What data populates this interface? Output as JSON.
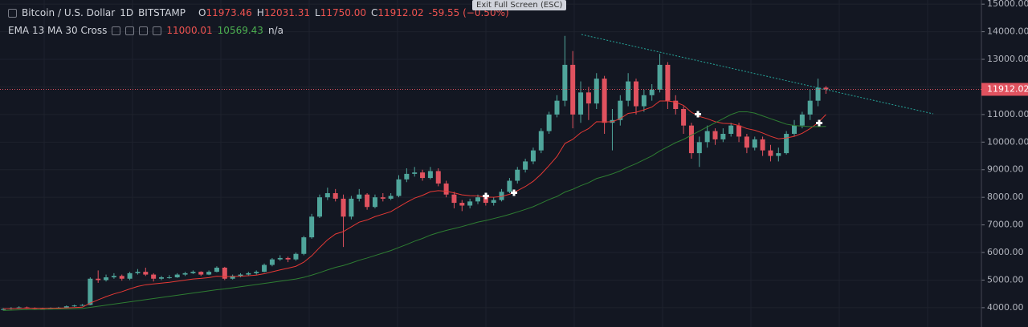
{
  "header": {
    "symbol": "Bitcoin / U.S. Dollar",
    "interval": "1D",
    "exchange": "BITSTAMP",
    "o_label": "O",
    "open": "11973.46",
    "h_label": "H",
    "high": "12031.31",
    "l_label": "L",
    "low": "11750.00",
    "c_label": "C",
    "close": "11912.02",
    "change": "-59.55 (−0.50%)"
  },
  "indicator": {
    "name": "EMA 13 MA 30 Cross",
    "ema": "11000.01",
    "ma": "10569.43",
    "cross": "n/a"
  },
  "tooltip": "Exit Full Screen (ESC)",
  "chart_data": {
    "type": "candlestick",
    "up_color": "#4fa59b",
    "down_color": "#e0525f",
    "grid": true,
    "ylim": [
      3300,
      15150
    ],
    "yticks": [
      {
        "value": 4000,
        "label": "4000.00"
      },
      {
        "value": 5000,
        "label": "5000.00"
      },
      {
        "value": 6000,
        "label": "6000.00"
      },
      {
        "value": 7000,
        "label": "7000.00"
      },
      {
        "value": 8000,
        "label": "8000.00"
      },
      {
        "value": 9000,
        "label": "9000.00"
      },
      {
        "value": 10000,
        "label": "10000.00"
      },
      {
        "value": 11000,
        "label": "11000.00"
      },
      {
        "value": 12000,
        "label": "12000.00"
      },
      {
        "value": 13000,
        "label": "13000.00"
      },
      {
        "value": 14000,
        "label": "14000.00"
      },
      {
        "value": 15000,
        "label": "15000.00"
      }
    ],
    "last_price": {
      "value": 11912.02,
      "label": "11912.02"
    },
    "candles": [
      [
        3930,
        3990,
        3900,
        3950
      ],
      [
        3950,
        4020,
        3930,
        3980
      ],
      [
        3980,
        4050,
        3960,
        4010
      ],
      [
        4010,
        4040,
        3960,
        3990
      ],
      [
        3990,
        4010,
        3940,
        3970
      ],
      [
        3970,
        4000,
        3930,
        3960
      ],
      [
        3960,
        4010,
        3940,
        3990
      ],
      [
        3990,
        4030,
        3970,
        4000
      ],
      [
        4000,
        4080,
        3980,
        4050
      ],
      [
        4050,
        4110,
        4030,
        4080
      ],
      [
        4080,
        4130,
        4060,
        4100
      ],
      [
        4100,
        5100,
        4090,
        5050
      ],
      [
        5050,
        5350,
        4900,
        5000
      ],
      [
        5000,
        5200,
        4950,
        5100
      ],
      [
        5100,
        5250,
        5050,
        5150
      ],
      [
        5150,
        5200,
        4980,
        5050
      ],
      [
        5050,
        5300,
        5000,
        5250
      ],
      [
        5250,
        5400,
        5200,
        5300
      ],
      [
        5300,
        5450,
        5150,
        5200
      ],
      [
        5200,
        5250,
        4950,
        5050
      ],
      [
        5050,
        5150,
        5000,
        5100
      ],
      [
        5100,
        5180,
        5050,
        5100
      ],
      [
        5100,
        5250,
        5080,
        5200
      ],
      [
        5200,
        5300,
        5150,
        5250
      ],
      [
        5250,
        5350,
        5220,
        5300
      ],
      [
        5300,
        5320,
        5150,
        5200
      ],
      [
        5200,
        5350,
        5180,
        5300
      ],
      [
        5300,
        5500,
        5280,
        5450
      ],
      [
        5450,
        5480,
        5000,
        5050
      ],
      [
        5050,
        5200,
        5020,
        5150
      ],
      [
        5150,
        5250,
        5100,
        5200
      ],
      [
        5200,
        5300,
        5150,
        5250
      ],
      [
        5250,
        5350,
        5200,
        5300
      ],
      [
        5300,
        5600,
        5280,
        5550
      ],
      [
        5550,
        5800,
        5500,
        5750
      ],
      [
        5750,
        5900,
        5700,
        5800
      ],
      [
        5800,
        5850,
        5650,
        5750
      ],
      [
        5750,
        6000,
        5700,
        5950
      ],
      [
        5950,
        6600,
        5900,
        6550
      ],
      [
        6550,
        7400,
        6500,
        7300
      ],
      [
        7300,
        8100,
        7250,
        8000
      ],
      [
        8000,
        8350,
        7900,
        8150
      ],
      [
        8150,
        8300,
        7850,
        7950
      ],
      [
        7950,
        8100,
        6200,
        7300
      ],
      [
        7300,
        8050,
        7200,
        7950
      ],
      [
        7950,
        8300,
        7850,
        8100
      ],
      [
        8100,
        8150,
        7550,
        7650
      ],
      [
        7650,
        8100,
        7600,
        8000
      ],
      [
        8000,
        8150,
        7850,
        7950
      ],
      [
        7950,
        8150,
        7900,
        8050
      ],
      [
        8050,
        8800,
        8000,
        8650
      ],
      [
        8650,
        9050,
        8550,
        8850
      ],
      [
        8850,
        9100,
        8750,
        8900
      ],
      [
        8900,
        9000,
        8600,
        8700
      ],
      [
        8700,
        9100,
        8650,
        8950
      ],
      [
        8950,
        9050,
        8400,
        8500
      ],
      [
        8500,
        8600,
        8000,
        8100
      ],
      [
        8100,
        8200,
        7600,
        7800
      ],
      [
        7800,
        7900,
        7500,
        7700
      ],
      [
        7700,
        7950,
        7600,
        7850
      ],
      [
        7850,
        8100,
        7750,
        8000
      ],
      [
        8000,
        8050,
        7700,
        7800
      ],
      [
        7800,
        8000,
        7700,
        7900
      ],
      [
        7900,
        8300,
        7850,
        8200
      ],
      [
        8200,
        8700,
        8150,
        8600
      ],
      [
        8600,
        9100,
        8500,
        9000
      ],
      [
        9000,
        9400,
        8900,
        9300
      ],
      [
        9300,
        9800,
        9200,
        9700
      ],
      [
        9700,
        10500,
        9600,
        10400
      ],
      [
        10400,
        11100,
        10300,
        11000
      ],
      [
        11000,
        11700,
        10900,
        11500
      ],
      [
        11500,
        13850,
        11300,
        12800
      ],
      [
        12800,
        13300,
        10500,
        11000
      ],
      [
        11000,
        12200,
        10700,
        11800
      ],
      [
        11800,
        12000,
        10800,
        11400
      ],
      [
        11400,
        12500,
        11200,
        12300
      ],
      [
        12300,
        12400,
        10300,
        10700
      ],
      [
        10700,
        11200,
        9700,
        10800
      ],
      [
        10800,
        11700,
        10600,
        11500
      ],
      [
        11500,
        12500,
        11300,
        12200
      ],
      [
        12200,
        12300,
        11000,
        11300
      ],
      [
        11300,
        11900,
        11100,
        11700
      ],
      [
        11700,
        12100,
        11500,
        11900
      ],
      [
        11900,
        13200,
        11800,
        12800
      ],
      [
        12800,
        12900,
        11200,
        11500
      ],
      [
        11500,
        11700,
        11000,
        11200
      ],
      [
        11200,
        11300,
        10300,
        10600
      ],
      [
        10600,
        10700,
        9400,
        9600
      ],
      [
        9600,
        10200,
        9100,
        10000
      ],
      [
        10000,
        10600,
        9800,
        10400
      ],
      [
        10400,
        10500,
        9900,
        10100
      ],
      [
        10100,
        10500,
        10000,
        10300
      ],
      [
        10300,
        10700,
        10200,
        10600
      ],
      [
        10600,
        10700,
        10000,
        10200
      ],
      [
        10200,
        10300,
        9600,
        9800
      ],
      [
        9800,
        10200,
        9700,
        10100
      ],
      [
        10100,
        10200,
        9500,
        9700
      ],
      [
        9700,
        9900,
        9300,
        9500
      ],
      [
        9500,
        9800,
        9300,
        9600
      ],
      [
        9600,
        10400,
        9550,
        10300
      ],
      [
        10300,
        10800,
        10200,
        10600
      ],
      [
        10600,
        11100,
        10500,
        11000
      ],
      [
        11000,
        11900,
        10800,
        11500
      ],
      [
        11500,
        12300,
        11300,
        11971.57
      ],
      [
        11973.46,
        12031.31,
        11750,
        11912.02
      ]
    ],
    "series": [
      {
        "name": "EMA 13",
        "color": "#e53935",
        "values": [
          3960,
          3965,
          3975,
          3978,
          3978,
          3976,
          3978,
          3982,
          3992,
          4005,
          4018,
          4165,
          4285,
          4400,
          4500,
          4580,
          4680,
          4770,
          4830,
          4860,
          4890,
          4920,
          4960,
          5000,
          5040,
          5060,
          5090,
          5140,
          5130,
          5130,
          5140,
          5160,
          5180,
          5230,
          5300,
          5370,
          5430,
          5500,
          5650,
          5880,
          6180,
          6460,
          6670,
          6760,
          6930,
          7100,
          7180,
          7300,
          7390,
          7480,
          7650,
          7820,
          7970,
          8070,
          8200,
          8240,
          8220,
          8160,
          8090,
          8060,
          8050,
          8010,
          8000,
          8030,
          8110,
          8240,
          8390,
          8580,
          8840,
          9150,
          9480,
          9950,
          10100,
          10340,
          10490,
          10740,
          10730,
          10740,
          10850,
          11040,
          11080,
          11170,
          11270,
          11490,
          11490,
          11450,
          11330,
          11080,
          10930,
          10850,
          10740,
          10680,
          10670,
          10600,
          10490,
          10430,
          10330,
          10210,
          10120,
          10150,
          10210,
          10320,
          10490,
          10700,
          11000.01
        ]
      },
      {
        "name": "MA 30",
        "color": "#2e7d32",
        "values": [
          3900,
          3910,
          3920,
          3930,
          3935,
          3940,
          3945,
          3950,
          3955,
          3960,
          3970,
          4010,
          4050,
          4090,
          4130,
          4170,
          4210,
          4250,
          4290,
          4330,
          4370,
          4410,
          4450,
          4490,
          4530,
          4570,
          4610,
          4650,
          4680,
          4720,
          4760,
          4800,
          4840,
          4880,
          4920,
          4960,
          5000,
          5040,
          5100,
          5180,
          5270,
          5370,
          5460,
          5530,
          5620,
          5720,
          5800,
          5890,
          5980,
          6070,
          6180,
          6290,
          6410,
          6510,
          6630,
          6720,
          6800,
          6870,
          6940,
          7020,
          7100,
          7160,
          7230,
          7300,
          7380,
          7470,
          7560,
          7660,
          7790,
          7920,
          8030,
          8190,
          8290,
          8420,
          8530,
          8680,
          8760,
          8850,
          8960,
          9100,
          9220,
          9360,
          9500,
          9680,
          9830,
          9980,
          10100,
          10250,
          10400,
          10550,
          10700,
          10850,
          11000,
          11100,
          11100,
          11050,
          10950,
          10850,
          10750,
          10650,
          10600,
          10580,
          10560,
          10560,
          10569.43
        ]
      }
    ]
  }
}
